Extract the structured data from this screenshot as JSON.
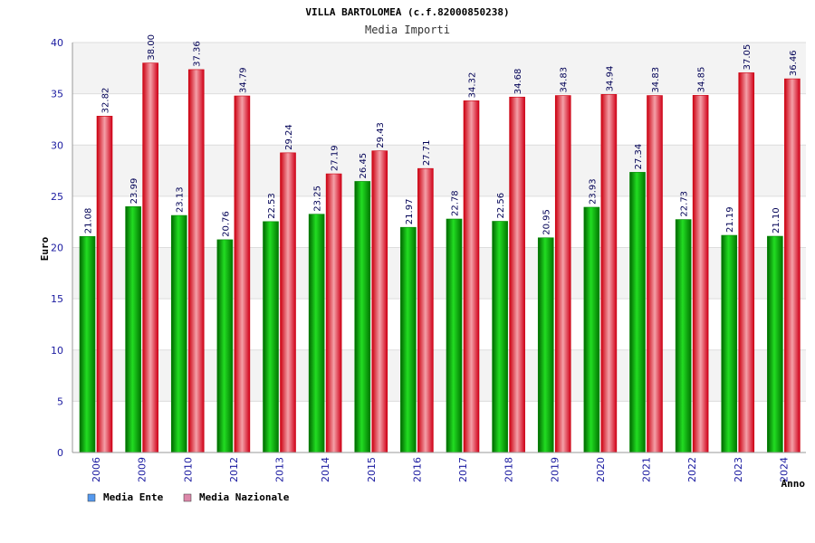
{
  "chart_data": {
    "type": "bar",
    "title": "VILLA BARTOLOMEA (c.f.82000850238)",
    "subtitle": "Media Importi",
    "xlabel": "Anno",
    "ylabel": "Euro",
    "ylim": [
      0,
      40
    ],
    "yticks": [
      "0",
      "5",
      "10",
      "15",
      "20",
      "25",
      "30",
      "35",
      "40"
    ],
    "categories": [
      "2006",
      "2009",
      "2010",
      "2012",
      "2013",
      "2014",
      "2015",
      "2016",
      "2017",
      "2018",
      "2019",
      "2020",
      "2021",
      "2022",
      "2023",
      "2024"
    ],
    "series": [
      {
        "name": "Media Ente",
        "color": "#00b000",
        "legend_color": "#5599ee",
        "values": [
          21.08,
          23.99,
          23.13,
          20.76,
          22.53,
          23.25,
          26.45,
          21.97,
          22.78,
          22.56,
          20.95,
          23.93,
          27.34,
          22.73,
          21.19,
          21.1
        ],
        "labels": [
          "21.08",
          "23.99",
          "23.13",
          "20.76",
          "22.53",
          "23.25",
          "26.45",
          "21.97",
          "22.78",
          "22.56",
          "20.95",
          "23.93",
          "27.34",
          "22.73",
          "21.19",
          "21.10"
        ]
      },
      {
        "name": "Media Nazionale",
        "color": "#e01020",
        "legend_color": "#dd88aa",
        "values": [
          32.82,
          38.0,
          37.36,
          34.79,
          29.24,
          27.19,
          29.43,
          27.71,
          34.32,
          34.68,
          34.83,
          34.94,
          34.83,
          34.85,
          37.05,
          36.46
        ],
        "labels": [
          "32.82",
          "38.00",
          "37.36",
          "34.79",
          "29.24",
          "27.19",
          "29.43",
          "27.71",
          "34.32",
          "34.68",
          "34.83",
          "34.94",
          "34.83",
          "34.85",
          "37.05",
          "36.46"
        ]
      }
    ],
    "grid": true,
    "legend_position": "bottom-left"
  }
}
